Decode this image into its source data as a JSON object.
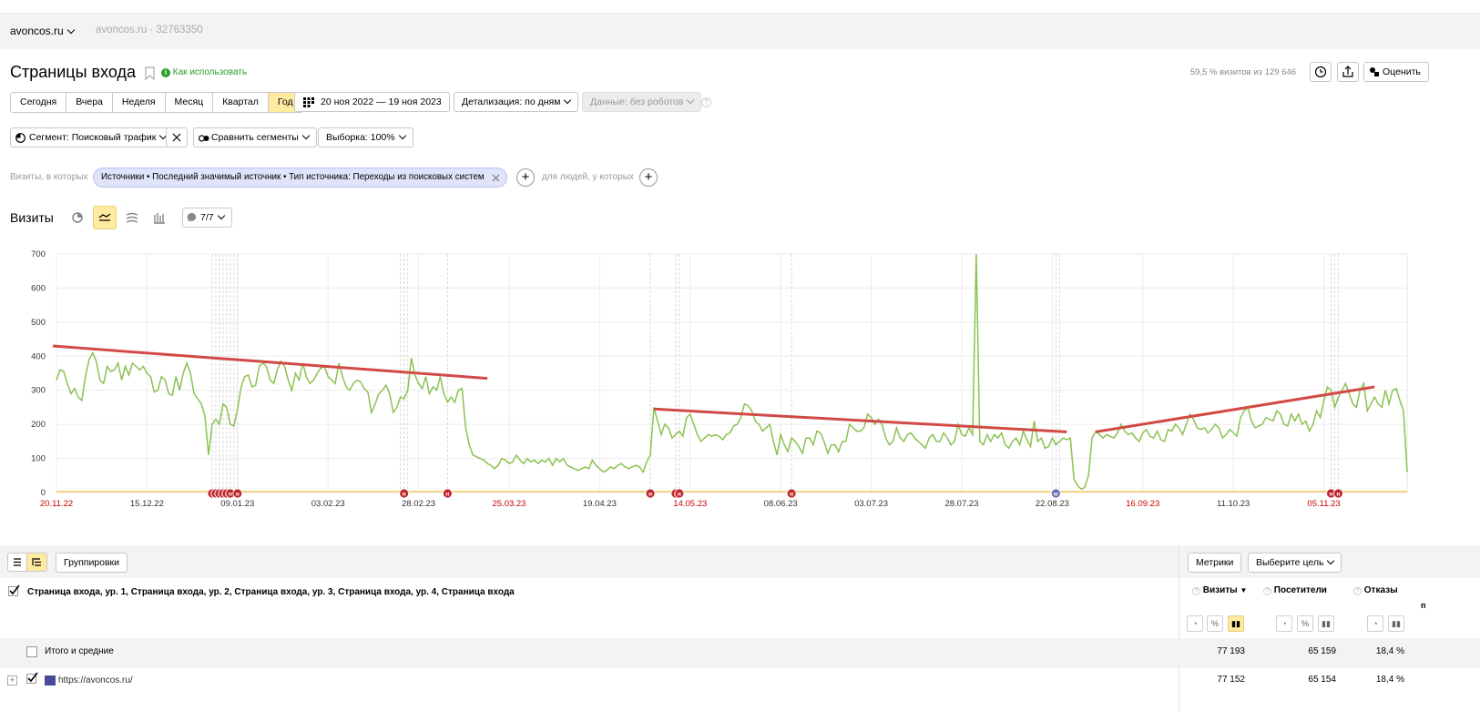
{
  "header": {
    "site_name": "avoncos.ru",
    "site_id": "avoncos.ru · 32763350"
  },
  "page": {
    "title": "Страницы входа",
    "help_link": "Как использовать",
    "visits_share": "59,5 % визитов из 129 646",
    "rate_label": "Оценить"
  },
  "periods": {
    "items": [
      "Сегодня",
      "Вчера",
      "Неделя",
      "Месяц",
      "Квартал",
      "Год"
    ],
    "active": "Год",
    "date_range": "20 ноя 2022 — 19 ноя 2023",
    "detail": "Детализация: по дням",
    "data_filter": "Данные: без роботов"
  },
  "segments": {
    "segment": "Сегмент: Поисковый трафик",
    "compare": "Сравнить сегменты",
    "sample": "Выборка: 100%"
  },
  "filters": {
    "prefix": "Визиты, в которых",
    "chip": "Источники • Последний значимый источник • Тип источника: Переходы из поисковых систем",
    "people": "для людей, у которых"
  },
  "chart_header": {
    "title": "Визиты",
    "series_count": "7/7"
  },
  "chart_data": {
    "type": "line",
    "ylim": [
      0,
      700
    ],
    "y_ticks": [
      "0",
      "100",
      "200",
      "300",
      "400",
      "500",
      "600",
      "700"
    ],
    "x_ticks": [
      {
        "label": "20.11.22",
        "day": 0,
        "weekend": true
      },
      {
        "label": "15.12.22",
        "day": 25,
        "weekend": false
      },
      {
        "label": "09.01.23",
        "day": 50,
        "weekend": false
      },
      {
        "label": "03.02.23",
        "day": 75,
        "weekend": false
      },
      {
        "label": "28.02.23",
        "day": 100,
        "weekend": false
      },
      {
        "label": "25.03.23",
        "day": 125,
        "weekend": true
      },
      {
        "label": "19.04.23",
        "day": 150,
        "weekend": false
      },
      {
        "label": "14.05.23",
        "day": 175,
        "weekend": true
      },
      {
        "label": "08.06.23",
        "day": 200,
        "weekend": false
      },
      {
        "label": "03.07.23",
        "day": 225,
        "weekend": false
      },
      {
        "label": "28.07.23",
        "day": 250,
        "weekend": false
      },
      {
        "label": "22.08.23",
        "day": 275,
        "weekend": false
      },
      {
        "label": "16.09.23",
        "day": 300,
        "weekend": true
      },
      {
        "label": "11.10.23",
        "day": 325,
        "weekend": false
      },
      {
        "label": "05.11.23",
        "day": 350,
        "weekend": true
      }
    ],
    "series": [
      {
        "color": "#8cc152",
        "values": [
          330,
          360,
          355,
          320,
          290,
          305,
          280,
          270,
          340,
          390,
          410,
          385,
          330,
          320,
          370,
          355,
          360,
          380,
          330,
          370,
          345,
          380,
          370,
          360,
          370,
          350,
          340,
          295,
          300,
          340,
          330,
          290,
          285,
          340,
          300,
          350,
          380,
          350,
          290,
          275,
          260,
          225,
          110,
          200,
          215,
          200,
          260,
          250,
          200,
          195,
          245,
          310,
          340,
          345,
          310,
          315,
          370,
          380,
          370,
          330,
          320,
          360,
          385,
          370,
          330,
          300,
          350,
          330,
          380,
          340,
          320,
          330,
          350,
          365,
          370,
          340,
          330,
          320,
          380,
          340,
          310,
          300,
          320,
          330,
          325,
          305,
          295,
          235,
          260,
          290,
          300,
          315,
          290,
          235,
          250,
          280,
          275,
          300,
          395,
          345,
          320,
          305,
          340,
          290,
          310,
          300,
          340,
          290,
          265,
          280,
          265,
          300,
          305,
          190,
          140,
          110,
          105,
          100,
          95,
          85,
          80,
          70,
          80,
          100,
          95,
          85,
          90,
          110,
          95,
          85,
          100,
          90,
          95,
          85,
          95,
          90,
          100,
          80,
          100,
          90,
          100,
          80,
          75,
          70,
          65,
          70,
          75,
          70,
          95,
          80,
          70,
          60,
          65,
          75,
          70,
          80,
          85,
          75,
          70,
          75,
          80,
          75,
          60,
          90,
          110,
          250,
          210,
          170,
          200,
          190,
          160,
          170,
          180,
          165,
          220,
          230,
          200,
          170,
          150,
          160,
          170,
          165,
          170,
          165,
          155,
          170,
          175,
          195,
          200,
          220,
          260,
          255,
          240,
          210,
          200,
          180,
          190,
          200,
          150,
          110,
          170,
          140,
          120,
          160,
          150,
          135,
          115,
          160,
          160,
          140,
          180,
          175,
          150,
          115,
          140,
          140,
          120,
          150,
          150,
          200,
          190,
          180,
          180,
          190,
          230,
          220,
          200,
          215,
          200,
          160,
          140,
          150,
          190,
          160,
          150,
          170,
          175,
          160,
          150,
          140,
          130,
          160,
          170,
          150,
          150,
          175,
          160,
          140,
          150,
          200,
          170,
          165,
          190,
          170,
          700,
          150,
          140,
          170,
          150,
          170,
          160,
          175,
          140,
          130,
          150,
          160,
          140,
          180,
          155,
          135,
          210,
          150,
          160,
          130,
          135,
          160,
          140,
          150,
          160,
          155,
          160,
          40,
          20,
          10,
          15,
          50,
          160,
          180,
          170,
          160,
          170,
          165,
          160,
          175,
          200,
          180,
          170,
          175,
          160,
          150,
          175,
          185,
          165,
          160,
          180,
          155,
          150,
          185,
          180,
          200,
          190,
          170,
          200,
          230,
          215,
          190,
          185,
          190,
          175,
          185,
          200,
          190,
          160,
          170,
          185,
          175,
          165,
          220,
          240,
          250,
          210,
          190,
          195,
          200,
          220,
          215,
          210,
          240,
          230,
          200,
          195,
          230,
          210,
          230,
          200,
          210,
          180,
          200,
          240,
          220,
          270,
          310,
          300,
          250,
          280,
          300,
          320,
          290,
          260,
          250,
          300,
          320,
          240,
          260,
          280,
          260,
          250,
          300,
          260,
          300,
          305,
          270,
          240,
          60
        ]
      }
    ],
    "trend_lines": [
      {
        "from": {
          "day": -1,
          "value": 430
        },
        "to": {
          "day": 119,
          "value": 335
        }
      },
      {
        "from": {
          "day": 165,
          "value": 245
        },
        "to": {
          "day": 279,
          "value": 178
        }
      },
      {
        "from": {
          "day": 287,
          "value": 178
        },
        "to": {
          "day": 364,
          "value": 310
        }
      }
    ],
    "annotation_days": [
      43,
      44,
      45,
      46,
      47,
      48,
      49,
      50,
      95,
      96,
      97,
      108,
      164,
      171,
      172,
      203,
      276,
      277,
      352,
      353,
      354
    ],
    "annotation_markers": [
      {
        "day": 43,
        "label": "н"
      },
      {
        "day": 44,
        "label": "н"
      },
      {
        "day": 45,
        "label": "н"
      },
      {
        "day": 46,
        "label": "н"
      },
      {
        "day": 47,
        "label": "н"
      },
      {
        "day": 48,
        "label": "н"
      },
      {
        "day": 50,
        "label": "н"
      },
      {
        "day": 96,
        "label": "н"
      },
      {
        "day": 108,
        "label": "н"
      },
      {
        "day": 164,
        "label": "н"
      },
      {
        "day": 171,
        "label": "н"
      },
      {
        "day": 172,
        "label": "н"
      },
      {
        "day": 203,
        "label": "н"
      },
      {
        "day": 276,
        "label": "м"
      },
      {
        "day": 352,
        "label": "н"
      },
      {
        "day": 354,
        "label": "н"
      }
    ]
  },
  "table_toolbar": {
    "groupings": "Группировки",
    "metrics": "Метрики",
    "goal": "Выберите цель"
  },
  "table": {
    "dimension_header": "Страница входа, ур. 1, Страница входа, ур. 2, Страница входа, ур. 3, Страница входа, ур. 4, Страница входа",
    "columns": [
      "Визиты",
      "Посетители",
      "Отказы"
    ],
    "sort_arrow": "▼",
    "extra_column_fragment": "п",
    "rows": [
      {
        "label": "Итого и средние",
        "values": [
          "77 193",
          "65 159",
          "18,4 %"
        ]
      },
      {
        "label": "https://avoncos.ru/",
        "values": [
          "77 152",
          "65 154",
          "18,4 %"
        ]
      }
    ]
  },
  "colors": {
    "accent_yellow": "#ffeba0",
    "series_green": "#8cc152",
    "trend_red": "#d24a45",
    "weekend_red": "#cc0000",
    "help_green": "#2b9e2b"
  }
}
